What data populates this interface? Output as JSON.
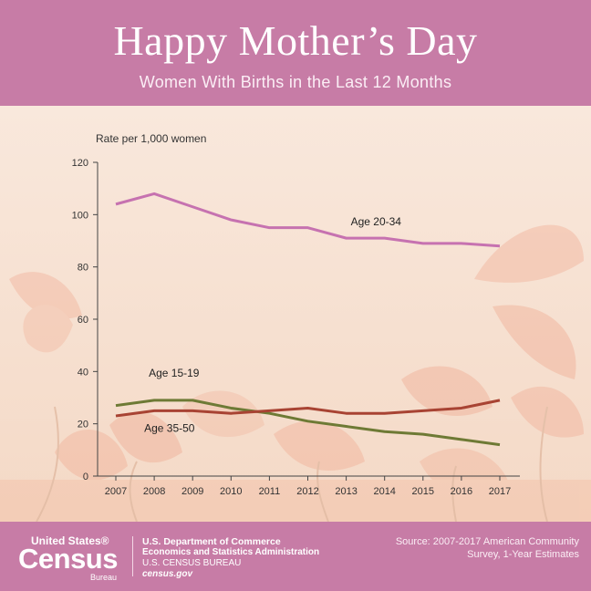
{
  "header": {
    "title": "Happy Mother’s Day",
    "subtitle": "Women With Births in the Last 12 Months"
  },
  "chart_data": {
    "type": "line",
    "ylabel": "Rate per 1,000 women",
    "xlabel": "",
    "ylim": [
      0,
      120
    ],
    "yticks": [
      "0",
      "20",
      "40",
      "60",
      "80",
      "100",
      "120"
    ],
    "categories": [
      "2007",
      "2008",
      "2009",
      "2010",
      "2011",
      "2012",
      "2013",
      "2014",
      "2015",
      "2016",
      "2017"
    ],
    "grid": false,
    "series": [
      {
        "name": "Age 20-34",
        "color": "#c672b0",
        "values": [
          104,
          108,
          103,
          98,
          95,
          95,
          91,
          91,
          89,
          89,
          88
        ]
      },
      {
        "name": "Age 15-19",
        "color": "#6e7a35",
        "values": [
          27,
          29,
          29,
          26,
          24,
          21,
          19,
          17,
          16,
          14,
          12
        ]
      },
      {
        "name": "Age 35-50",
        "color": "#a84333",
        "values": [
          23,
          25,
          25,
          24,
          25,
          26,
          24,
          24,
          25,
          26,
          29
        ]
      }
    ]
  },
  "footer": {
    "logo_top": "United States®",
    "logo_main": "Census",
    "logo_bottom": "Bureau",
    "dept": "U.S. Department of Commerce",
    "admin": "Economics and Statistics Administration",
    "bureau": "U.S. CENSUS BUREAU",
    "site": "census.gov",
    "source_line1": "Source: 2007-2017 American Community",
    "source_line2": "Survey, 1-Year Estimates"
  }
}
